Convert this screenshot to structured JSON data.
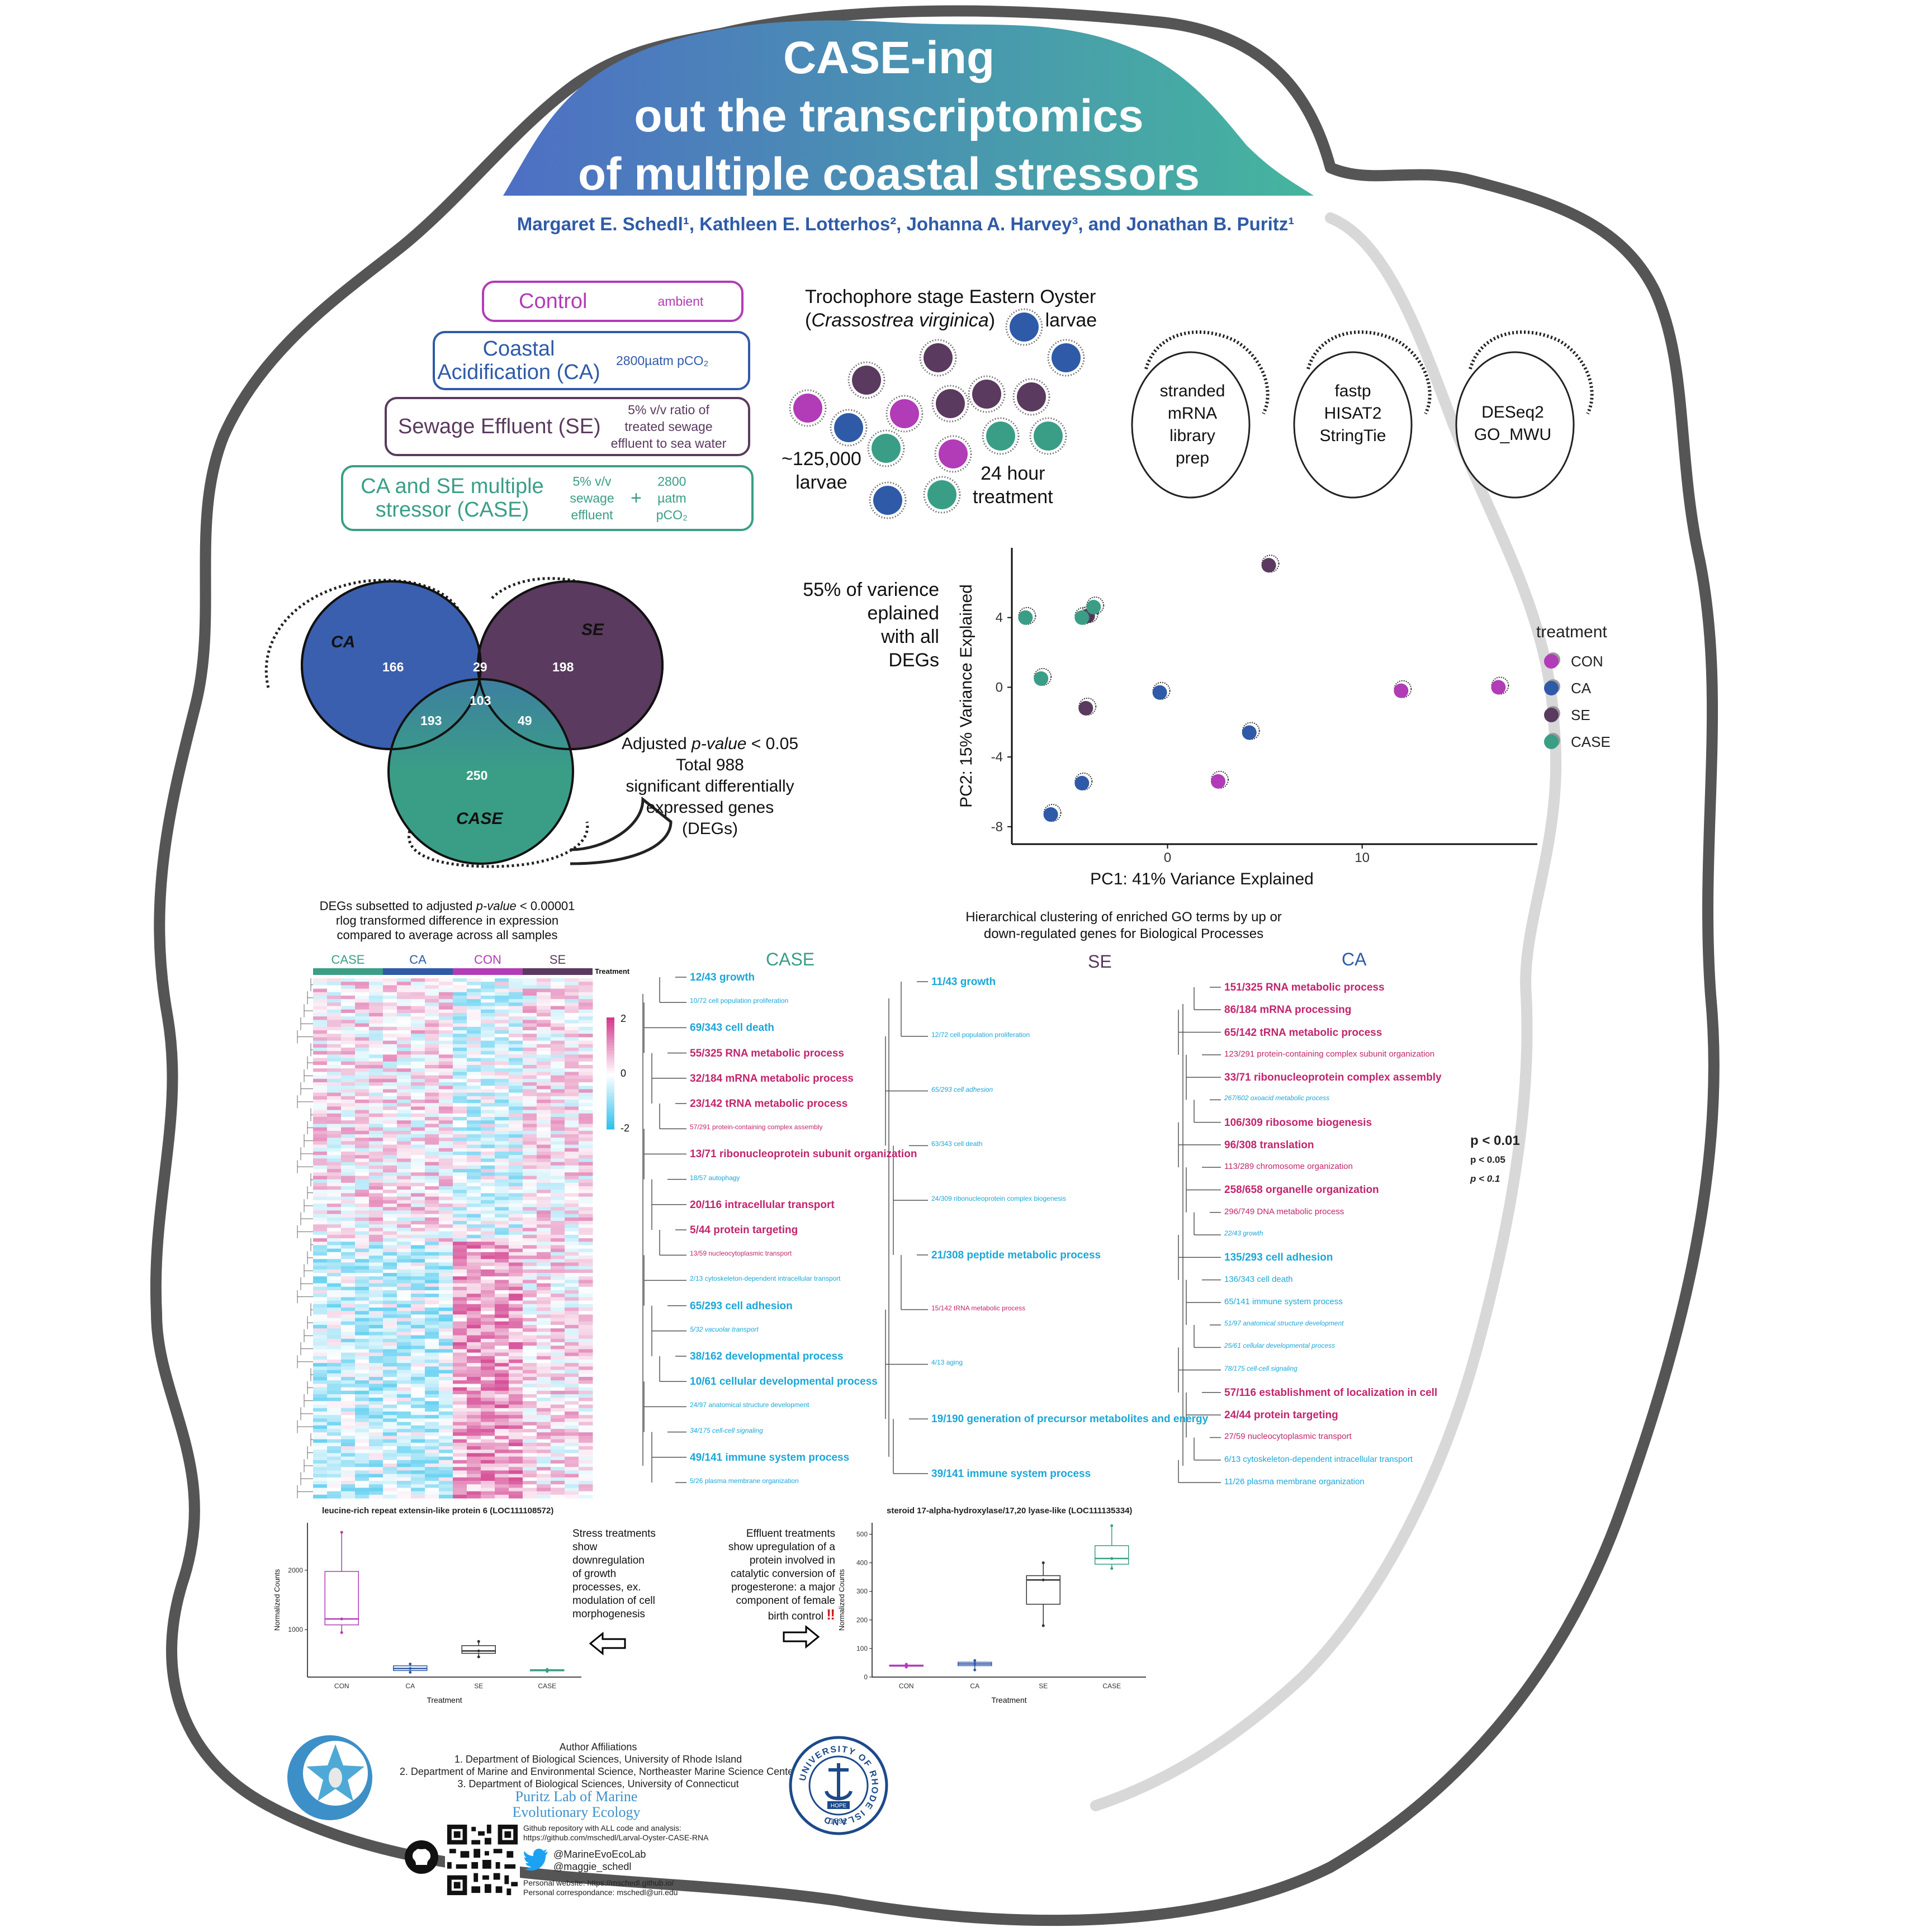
{
  "title": {
    "line1": "CASE-ing",
    "line2": "out the transcriptomics",
    "line3": "of multiple coastal stressors"
  },
  "authors": "Margaret E. Schedl¹, Kathleen E. Lotterhos², Johanna A. Harvey³, and Jonathan B. Puritz¹",
  "colors": {
    "control": "#b23bb7",
    "ca": "#2f5aa8",
    "se": "#5a3a5e",
    "case": "#3a9e86",
    "deg_up": "#c2256e",
    "deg_down": "#1aa7d8"
  },
  "treatments": {
    "control": {
      "name": "Control",
      "desc": "ambient"
    },
    "ca": {
      "name_l1": "Coastal",
      "name_l2": "Acidification (CA)",
      "desc": "2800µatm pCO₂"
    },
    "se": {
      "name": "Sewage Effluent (SE)",
      "desc_l1": "5% v/v ratio of",
      "desc_l2": "treated sewage",
      "desc_l3": "effluent to sea water"
    },
    "case": {
      "name_l1": "CA and SE multiple",
      "name_l2": "stressor (CASE)",
      "desc_a1": "5% v/v",
      "desc_a2": "sewage",
      "desc_a3": "effluent",
      "plus": "+",
      "desc_b1": "2800",
      "desc_b2": "µatm",
      "desc_b3": "pCO₂"
    }
  },
  "larvae": {
    "heading_l1": "Trochophore stage Eastern Oyster",
    "species": "Crassostrea virginica",
    "heading_end": "larvae",
    "count_l1": "~125,000",
    "count_l2": "larvae",
    "duration_l1": "24 hour",
    "duration_l2": "treatment"
  },
  "pipeline": {
    "step1_l1": "stranded",
    "step1_l2": "mRNA",
    "step1_l3": "library prep",
    "step2_l1": "fastp",
    "step2_l2": "HISAT2",
    "step2_l3": "StringTie",
    "step3_l1": "DESeq2",
    "step3_l2": "GO_MWU"
  },
  "venn": {
    "labels": {
      "ca": "CA",
      "se": "SE",
      "case": "CASE"
    },
    "counts": {
      "ca_only": "166",
      "ca_se": "29",
      "se_only": "198",
      "ca_case": "193",
      "all": "103",
      "se_case": "49",
      "case_only": "250"
    },
    "caption_l1a": "Adjusted ",
    "caption_l1b": "p-value",
    "caption_l1c": " < 0.05",
    "caption_l2": "Total 988",
    "caption_l3": "significant differentially",
    "caption_l4": "expressed genes",
    "caption_l5": "(DEGs)"
  },
  "pca_caption": {
    "l1": "55% of varience",
    "l2": "eplained",
    "l3": "with all",
    "l4": "DEGs"
  },
  "chart_data": [
    {
      "type": "scatter",
      "xlabel": "PC1: 41% Variance Explained",
      "ylabel": "PC2: 15% Variance Explained",
      "xticks": [
        "0",
        "10"
      ],
      "yticks": [
        "4",
        "0",
        "-4",
        "-8"
      ],
      "xlim": [
        -8,
        19
      ],
      "ylim": [
        -9,
        8
      ],
      "legend_title": "treatment",
      "legend_position": "right",
      "series": [
        {
          "name": "CON",
          "color": "#b23bb7",
          "points": [
            [
              12,
              -0.2
            ],
            [
              17,
              0.0
            ],
            [
              2.6,
              -5.4
            ]
          ]
        },
        {
          "name": "CA",
          "color": "#2f5aa8",
          "points": [
            [
              -0.4,
              -0.3
            ],
            [
              4.2,
              -2.6
            ],
            [
              -4.4,
              -5.5
            ],
            [
              -6.0,
              -7.3
            ]
          ]
        },
        {
          "name": "SE",
          "color": "#5a3a5e",
          "points": [
            [
              5.2,
              7.0
            ],
            [
              -4.2,
              -1.2
            ],
            [
              -4.1,
              4.1
            ]
          ]
        },
        {
          "name": "CASE",
          "color": "#3a9e86",
          "points": [
            [
              -7.3,
              4.0
            ],
            [
              -6.5,
              0.5
            ],
            [
              -4.4,
              4.0
            ],
            [
              -3.8,
              4.6
            ]
          ]
        }
      ]
    },
    {
      "type": "heatmap",
      "title_l1a": "DEGs subsetted to adjusted ",
      "title_l1b": "p-value",
      "title_l1c": " < 0.00001",
      "title_l2": "rlog transformed difference in expression",
      "title_l3": "compared to average across all samples",
      "column_groups": [
        "CASE",
        "CA",
        "CON",
        "SE"
      ],
      "annotation_label": "Treatment",
      "scale_ticks": [
        "2",
        "0",
        "-2"
      ]
    },
    {
      "type": "box",
      "title": "leucine-rich repeat extensin-like protein 6 (LOC111108572)",
      "xlabel": "Treatment",
      "ylabel": "Normalized Counts",
      "categories": [
        "CON",
        "CA",
        "SE",
        "CASE"
      ],
      "yticks": [
        "1000",
        "2000"
      ],
      "ylim": [
        200,
        2800
      ],
      "boxes": [
        {
          "min": 950,
          "q1": 1080,
          "median": 1180,
          "q3": 1980,
          "max": 2640
        },
        {
          "min": 280,
          "q1": 310,
          "median": 345,
          "q3": 390,
          "max": 420
        },
        {
          "min": 540,
          "q1": 600,
          "median": 640,
          "q3": 730,
          "max": 800
        },
        {
          "min": 295,
          "q1": 305,
          "median": 315,
          "q3": 325,
          "max": 330
        }
      ]
    },
    {
      "type": "box",
      "title": "steroid 17-alpha-hydroxylase/17,20 lyase-like (LOC111135334)",
      "xlabel": "Treatment",
      "ylabel": "Normalized Counts",
      "categories": [
        "CON",
        "CA",
        "SE",
        "CASE"
      ],
      "yticks": [
        "0",
        "100",
        "200",
        "300",
        "400",
        "500"
      ],
      "ylim": [
        0,
        540
      ],
      "boxes": [
        {
          "min": 35,
          "q1": 38,
          "median": 40,
          "q3": 42,
          "max": 45
        },
        {
          "min": 25,
          "q1": 40,
          "median": 46,
          "q3": 52,
          "max": 58
        },
        {
          "min": 180,
          "q1": 255,
          "median": 340,
          "q3": 355,
          "max": 400
        },
        {
          "min": 380,
          "q1": 395,
          "median": 415,
          "q3": 460,
          "max": 530
        }
      ]
    }
  ],
  "go": {
    "heading_l1": "Hierarchical clustering of enriched GO terms by up or",
    "heading_l2": "down-regulated genes for Biological Processes",
    "columns": {
      "case": "CASE",
      "se": "SE",
      "ca": "CA"
    },
    "case_terms": [
      {
        "t": "12/43 growth",
        "c": "blue",
        "s": "b1"
      },
      {
        "t": "10/72 cell population proliferation",
        "c": "blue",
        "s": "b3n"
      },
      {
        "t": "69/343 cell death",
        "c": "blue",
        "s": "b1"
      },
      {
        "t": "55/325 RNA metabolic process",
        "c": "pink",
        "s": "b1"
      },
      {
        "t": "32/184 mRNA metabolic process",
        "c": "pink",
        "s": "b1"
      },
      {
        "t": "23/142 tRNA metabolic process",
        "c": "pink",
        "s": "b1"
      },
      {
        "t": "57/291 protein-containing complex assembly",
        "c": "pink",
        "s": "b3n"
      },
      {
        "t": "13/71 ribonucleoprotein subunit organization",
        "c": "pink",
        "s": "b1"
      },
      {
        "t": "18/57 autophagy",
        "c": "blue",
        "s": "b3n"
      },
      {
        "t": "20/116 intracellular transport",
        "c": "pink",
        "s": "b1"
      },
      {
        "t": "5/44 protein targeting",
        "c": "pink",
        "s": "b1"
      },
      {
        "t": "13/59 nucleocytoplasmic transport",
        "c": "pink",
        "s": "b3n"
      },
      {
        "t": "2/13 cytoskeleton-dependent intracellular transport",
        "c": "blue",
        "s": "b3n"
      },
      {
        "t": "65/293 cell adhesion",
        "c": "blue",
        "s": "b1"
      },
      {
        "t": "5/32 vacuolar transport",
        "c": "blue",
        "s": "b3"
      },
      {
        "t": "38/162 developmental process",
        "c": "blue",
        "s": "b1"
      },
      {
        "t": "10/61 cellular developmental process",
        "c": "blue",
        "s": "b1"
      },
      {
        "t": "24/97 anatomical structure development",
        "c": "blue",
        "s": "b3n"
      },
      {
        "t": "34/175 cell-cell signaling",
        "c": "blue",
        "s": "b3"
      },
      {
        "t": "49/141 immune system process",
        "c": "blue",
        "s": "b1"
      },
      {
        "t": "5/26 plasma membrane organization",
        "c": "blue",
        "s": "b3n"
      }
    ],
    "se_terms": [
      {
        "t": "11/43 growth",
        "c": "blue",
        "s": "b1"
      },
      {
        "t": "12/72 cell population proliferation",
        "c": "blue",
        "s": "b3n"
      },
      {
        "t": "65/293 cell adhesion",
        "c": "blue",
        "s": "b3"
      },
      {
        "t": "63/343 cell death",
        "c": "blue",
        "s": "b3n"
      },
      {
        "t": "24/309 ribonucleoprotein complex biogenesis",
        "c": "blue",
        "s": "b3n"
      },
      {
        "t": "21/308 peptide metabolic process",
        "c": "blue",
        "s": "b1"
      },
      {
        "t": "15/142 tRNA metabolic process",
        "c": "pink",
        "s": "b3n"
      },
      {
        "t": "4/13 aging",
        "c": "blue",
        "s": "b3n"
      },
      {
        "t": "19/190 generation of precursor metabolites and energy",
        "c": "blue",
        "s": "b1"
      },
      {
        "t": "39/141 immune system process",
        "c": "blue",
        "s": "b1"
      }
    ],
    "ca_terms": [
      {
        "t": "151/325 RNA metabolic process",
        "c": "pink",
        "s": "b1"
      },
      {
        "t": "86/184 mRNA processing",
        "c": "pink",
        "s": "b1"
      },
      {
        "t": "65/142 tRNA metabolic process",
        "c": "pink",
        "s": "b1"
      },
      {
        "t": "123/291 protein-containing complex subunit organization",
        "c": "pink",
        "s": "b2"
      },
      {
        "t": "33/71 ribonucleoprotein complex assembly",
        "c": "pink",
        "s": "b1"
      },
      {
        "t": "267/602 oxoacid metabolic process",
        "c": "blue",
        "s": "b3"
      },
      {
        "t": "106/309 ribosome biogenesis",
        "c": "pink",
        "s": "b1"
      },
      {
        "t": "96/308 translation",
        "c": "pink",
        "s": "b1"
      },
      {
        "t": "113/289 chromosome organization",
        "c": "pink",
        "s": "b2"
      },
      {
        "t": "258/658 organelle organization",
        "c": "pink",
        "s": "b1"
      },
      {
        "t": "296/749 DNA metabolic process",
        "c": "pink",
        "s": "b2"
      },
      {
        "t": "22/43 growth",
        "c": "blue",
        "s": "b3"
      },
      {
        "t": "135/293 cell adhesion",
        "c": "blue",
        "s": "b1"
      },
      {
        "t": "136/343 cell death",
        "c": "blue",
        "s": "b2"
      },
      {
        "t": "65/141 immune system process",
        "c": "blue",
        "s": "b2"
      },
      {
        "t": "51/97 anatomical structure development",
        "c": "blue",
        "s": "b3"
      },
      {
        "t": "25/61 cellular developmental process",
        "c": "blue",
        "s": "b3"
      },
      {
        "t": "78/175 cell-cell signaling",
        "c": "blue",
        "s": "b3"
      },
      {
        "t": "57/116 establishment of localization in cell",
        "c": "pink",
        "s": "b1"
      },
      {
        "t": "24/44 protein targeting",
        "c": "pink",
        "s": "b1"
      },
      {
        "t": "27/59 nucleocytoplasmic transport",
        "c": "pink",
        "s": "b2"
      },
      {
        "t": "6/13 cytoskeleton-dependent intracellular transport",
        "c": "blue",
        "s": "b2"
      },
      {
        "t": "11/26 plasma membrane organization",
        "c": "blue",
        "s": "b2"
      }
    ],
    "pvalue_legend": {
      "p1": "p < 0.01",
      "p2": "p < 0.05",
      "p3": "p < 0.1"
    }
  },
  "box1_text": {
    "l1": "Stress treatments",
    "l2": "show",
    "l3": "downregulation",
    "l4": "of growth",
    "l5": "processes, ex.",
    "l6": "modulation of cell",
    "l7": "morphogenesis"
  },
  "box2_text": {
    "l1": "Effluent treatments",
    "l2": "show upregulation of a",
    "l3": "protein involved in",
    "l4": "catalytic conversion of",
    "l5": "progesterone: a major",
    "l6": "component of female",
    "l7": "birth control",
    "mark": "‼"
  },
  "affiliations": {
    "heading": "Author Affiliations",
    "a1": "1. Department of Biological Sciences, University of Rhode Island",
    "a2": "2. Department of Marine and Environmental Science, Northeaster Marine Science Center",
    "a3": "3. Department of Biological Sciences, University of Connecticut",
    "lab_l1": "Puritz Lab of Marine",
    "lab_l2": "Evolutionary Ecology",
    "repo_l1": "Github repository with ALL code and analysis:",
    "repo_l2": "https://github.com/mschedl/Larval-Oyster-CASE-RNA",
    "twitter1": "@MarineEvoEcoLab",
    "twitter2": "@maggie_schedl",
    "web1": "Personal website: https://mschedl.github.io/",
    "web2": "Personal correspondance: mschedl@uri.edu"
  },
  "uri_seal": {
    "ring": "UNIVERSITY OF RHODE ISLAND",
    "hope": "HOPE",
    "year": "1892"
  }
}
